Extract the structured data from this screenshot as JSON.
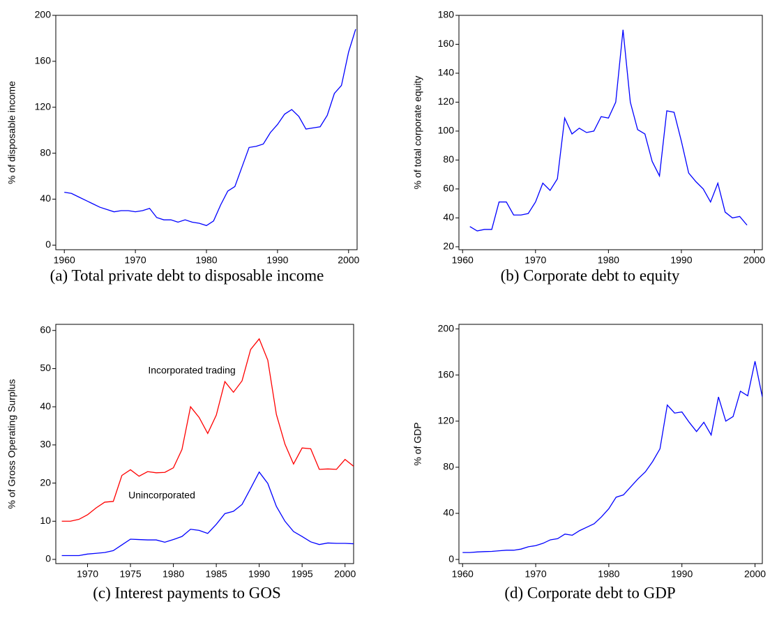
{
  "chart_data": [
    {
      "type": "line",
      "caption": "(a) Total private debt to disposable income",
      "ylabel": "% of disposable income",
      "x": [
        1960,
        1961,
        1962,
        1963,
        1964,
        1965,
        1966,
        1967,
        1968,
        1969,
        1970,
        1971,
        1972,
        1973,
        1974,
        1975,
        1976,
        1977,
        1978,
        1979,
        1980,
        1981,
        1982,
        1983,
        1984,
        1985,
        1986,
        1987,
        1988,
        1989,
        1990,
        1991,
        1992,
        1993,
        1994,
        1995,
        1996,
        1997,
        1998,
        1999,
        2000,
        2001
      ],
      "series": [
        {
          "color": "#0000ff",
          "values": [
            46,
            45,
            42,
            39,
            36,
            33,
            31,
            29,
            30,
            30,
            29,
            30,
            32,
            24,
            22,
            22,
            20,
            22,
            20,
            19,
            17,
            21,
            35,
            47,
            51,
            68,
            85,
            86,
            88,
            98,
            105,
            114,
            118,
            112,
            101,
            102,
            103,
            113,
            132,
            139,
            168,
            188
          ]
        }
      ],
      "xlim": [
        1958.8,
        2001.2
      ],
      "ylim": [
        -4,
        200
      ],
      "xticks": [
        1960,
        1970,
        1980,
        1990,
        2000
      ],
      "yticks": [
        0,
        40,
        80,
        120,
        160,
        200
      ]
    },
    {
      "type": "line",
      "caption": "(b) Corporate debt to equity",
      "ylabel": "% of total corporate equity",
      "x": [
        1961,
        1962,
        1963,
        1964,
        1965,
        1966,
        1967,
        1968,
        1969,
        1970,
        1971,
        1972,
        1973,
        1974,
        1975,
        1976,
        1977,
        1978,
        1979,
        1980,
        1981,
        1982,
        1983,
        1984,
        1985,
        1986,
        1987,
        1988,
        1989,
        1990,
        1991,
        1992,
        1993,
        1994,
        1995,
        1996,
        1997,
        1998,
        1999
      ],
      "series": [
        {
          "color": "#0000ff",
          "values": [
            34,
            31,
            32,
            32,
            51,
            51,
            42,
            42,
            43,
            51,
            64,
            59,
            67,
            109,
            98,
            102,
            99,
            100,
            110,
            109,
            120,
            170,
            120,
            101,
            98,
            79,
            69,
            114,
            113,
            93,
            71,
            65,
            60,
            51,
            64,
            44,
            40,
            41,
            35
          ]
        }
      ],
      "xlim": [
        1959.5,
        2001.1
      ],
      "ylim": [
        18,
        180
      ],
      "xticks": [
        1960,
        1970,
        1980,
        1990,
        2000
      ],
      "yticks": [
        20,
        40,
        60,
        80,
        100,
        120,
        140,
        160,
        180
      ]
    },
    {
      "type": "line",
      "caption": "(c) Interest payments to GOS",
      "ylabel": "% of Gross Operating Surplus",
      "x": [
        1967,
        1968,
        1969,
        1970,
        1971,
        1972,
        1973,
        1974,
        1975,
        1976,
        1977,
        1978,
        1979,
        1980,
        1981,
        1982,
        1983,
        1984,
        1985,
        1986,
        1987,
        1988,
        1989,
        1990,
        1991,
        1992,
        1993,
        1994,
        1995,
        1996,
        1997,
        1998,
        1999,
        2000,
        2001
      ],
      "series": [
        {
          "name": "Incorporated trading",
          "color": "#ff0000",
          "values": [
            10,
            10,
            10.5,
            11.7,
            13.5,
            15,
            15.2,
            22,
            23.5,
            21.8,
            23,
            22.7,
            22.8,
            24,
            28.8,
            40,
            37.2,
            33,
            37.8,
            46.6,
            43.8,
            46.8,
            55,
            57.8,
            52.2,
            38,
            30.2,
            25,
            29.2,
            29,
            23.6,
            23.7,
            23.6,
            26.2,
            24.4
          ]
        },
        {
          "name": "Unincorporated",
          "color": "#0000ff",
          "values": [
            1,
            1,
            1,
            1.4,
            1.6,
            1.8,
            2.3,
            3.8,
            5.3,
            5.2,
            5.1,
            5.1,
            4.5,
            5.2,
            6,
            7.9,
            7.6,
            6.8,
            9.2,
            12,
            12.6,
            14.4,
            18.6,
            22.9,
            19.9,
            13.9,
            10,
            7.3,
            6,
            4.6,
            3.9,
            4.3,
            4.2,
            4.2,
            4.1
          ]
        }
      ],
      "xlim": [
        1966.3,
        2001
      ],
      "ylim": [
        -1.1,
        61.6
      ],
      "xticks": [
        1970,
        1975,
        1980,
        1985,
        1990,
        1995,
        2000
      ],
      "yticks": [
        0,
        10,
        20,
        30,
        40,
        50,
        60
      ]
    },
    {
      "type": "line",
      "caption": "(d) Corporate debt to GDP",
      "ylabel": "% of GDP",
      "x": [
        1960,
        1961,
        1962,
        1963,
        1964,
        1965,
        1966,
        1967,
        1968,
        1969,
        1970,
        1971,
        1972,
        1973,
        1974,
        1975,
        1976,
        1977,
        1978,
        1979,
        1980,
        1981,
        1982,
        1983,
        1984,
        1985,
        1986,
        1987,
        1988,
        1989,
        1990,
        1991,
        1992,
        1993,
        1994,
        1995,
        1996,
        1997,
        1998,
        1999,
        2000,
        2001
      ],
      "series": [
        {
          "color": "#0000ff",
          "values": [
            6,
            6,
            6.5,
            6.8,
            7,
            7.5,
            8,
            8,
            9,
            11,
            12,
            14,
            17,
            18,
            22,
            21,
            25,
            28,
            31,
            37,
            44,
            54,
            56,
            63,
            70,
            76,
            85,
            96,
            134,
            127,
            128,
            119,
            111,
            119,
            108,
            141,
            120,
            124,
            146,
            142,
            172,
            141
          ]
        }
      ],
      "xlim": [
        1959.5,
        2001
      ],
      "ylim": [
        -3.6,
        204
      ],
      "xticks": [
        1960,
        1970,
        1980,
        1990,
        2000
      ],
      "yticks": [
        0,
        40,
        80,
        120,
        160,
        200
      ]
    }
  ]
}
